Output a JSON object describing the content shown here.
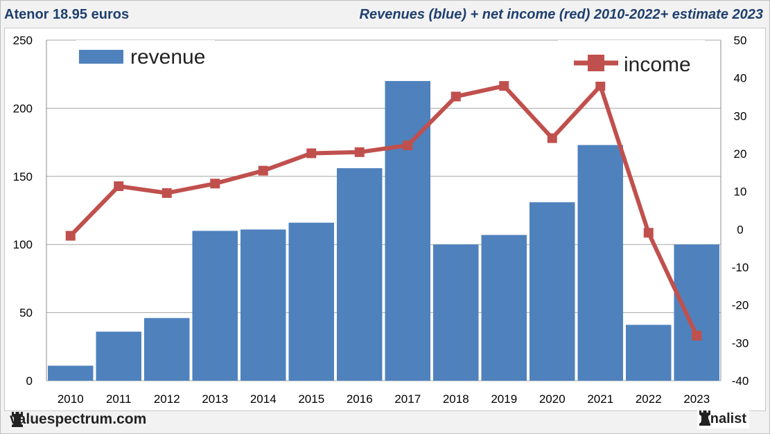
{
  "header": {
    "stock_title": "Atenor 18.95 euros",
    "chart_title": "Revenues (blue) + net income (red) 2010-2022+ estimate 2023"
  },
  "footer": {
    "site": "valuespectrum.com",
    "brand": "Analist"
  },
  "colors": {
    "revenue": "#4f81bd",
    "income": "#c0504d",
    "grid": "#a6a6a6",
    "text": "#1f3f6e"
  },
  "chart_data": {
    "type": "bar+line",
    "title": "Revenues (blue) + net income (red) 2010-2022+ estimate 2023",
    "categories": [
      "2010",
      "2011",
      "2012",
      "2013",
      "2014",
      "2015",
      "2016",
      "2017",
      "2018",
      "2019",
      "2020",
      "2021",
      "2022",
      "2023"
    ],
    "series": [
      {
        "name": "revenue",
        "type": "bar",
        "axis": "left",
        "values": [
          11,
          36,
          46,
          110,
          111,
          116,
          156,
          220,
          100,
          107,
          131,
          173,
          41,
          100
        ]
      },
      {
        "name": "income",
        "type": "line",
        "axis": "right",
        "values": [
          -1.7,
          11.4,
          9.6,
          12.1,
          15.5,
          20.1,
          20.4,
          22.2,
          35.1,
          37.9,
          24.1,
          37.9,
          -0.9,
          -28.1
        ]
      }
    ],
    "left_axis": {
      "ylim": [
        0,
        250
      ],
      "ticks": [
        0,
        50,
        100,
        150,
        200,
        250
      ]
    },
    "right_axis": {
      "ylim": [
        -40,
        50
      ],
      "ticks": [
        -40,
        -30,
        -20,
        -10,
        0,
        10,
        20,
        30,
        40,
        50
      ]
    },
    "legend": {
      "revenue_label": "revenue",
      "income_label": "income"
    },
    "grid": true
  }
}
